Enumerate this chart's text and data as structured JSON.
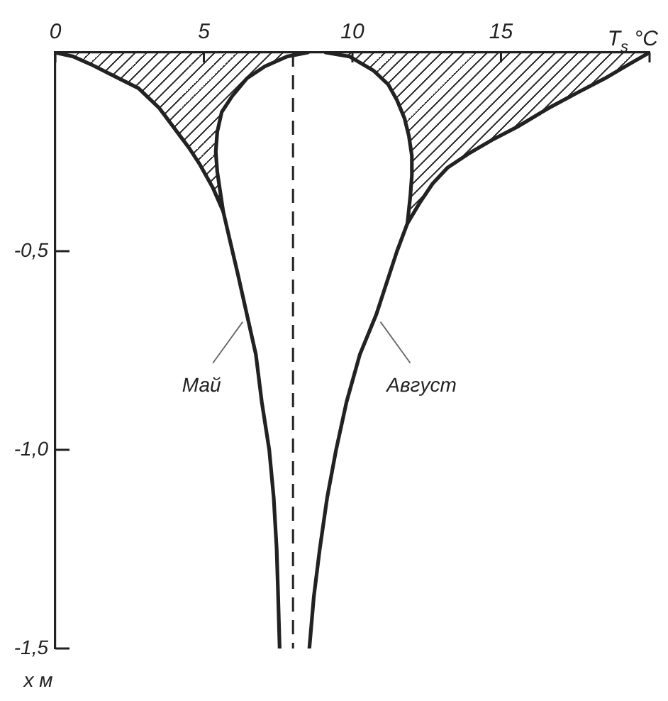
{
  "chart_data": {
    "type": "line",
    "xlabel": "T$_{s}$ °C",
    "ylabel": "x м",
    "xlim": [
      0,
      20
    ],
    "xticks": [
      0,
      5,
      10,
      15,
      {
        "value": 20,
        "label": null
      }
    ],
    "ylim": [
      -1.5,
      0
    ],
    "yticks": [
      {
        "value": -1.5,
        "label": "-1,5"
      },
      {
        "value": -1,
        "label": "-1,0"
      },
      {
        "value": -0.5,
        "label": "-0,5"
      }
    ],
    "series": [
      {
        "type": "area",
        "color": "#222222",
        "x": [
          8.5,
          7.8,
          7.05,
          6.45,
          5.95,
          5.6,
          5.45,
          5.4,
          5.45,
          5.55,
          5.65,
          5.3,
          4.85,
          4.5,
          4.0,
          3.5,
          2.8,
          2.0,
          1.2,
          0.6,
          0
        ],
        "values": [
          0,
          -0.01,
          -0.035,
          -0.065,
          -0.11,
          -0.15,
          -0.2,
          -0.25,
          -0.3,
          -0.35,
          -0.4,
          -0.34,
          -0.28,
          -0.24,
          -0.19,
          -0.14,
          -0.09,
          -0.06,
          -0.03,
          -0.01,
          0
        ]
      },
      {
        "name": "Май",
        "color": "#222222",
        "x": [
          5.65,
          5.9,
          6.15,
          6.45,
          6.75,
          6.95,
          7.2,
          7.35,
          7.45,
          7.5,
          7.55
        ],
        "values": [
          -0.4,
          -0.48,
          -0.56,
          -0.66,
          -0.76,
          -0.88,
          -1,
          -1.12,
          -1.25,
          -1.37,
          -1.5
        ]
      },
      {
        "type": "area",
        "color": "#222222",
        "x": [
          9.1,
          9.9,
          10.7,
          11.2,
          11.5,
          11.75,
          11.9,
          12.0,
          12.0,
          11.95,
          11.85,
          12.25,
          12.7,
          13.2,
          13.9,
          14.7,
          15.6,
          16.6,
          17.6,
          18.5,
          19.3,
          20
        ],
        "values": [
          0,
          -0.01,
          -0.045,
          -0.08,
          -0.12,
          -0.165,
          -0.21,
          -0.26,
          -0.31,
          -0.36,
          -0.43,
          -0.38,
          -0.33,
          -0.29,
          -0.255,
          -0.22,
          -0.185,
          -0.14,
          -0.1,
          -0.065,
          -0.03,
          0
        ]
      },
      {
        "name": "Август",
        "color": "#222222",
        "x": [
          11.85,
          11.5,
          11.15,
          10.8,
          10.25,
          9.8,
          9.45,
          9.15,
          8.9,
          8.7,
          8.55
        ],
        "values": [
          -0.43,
          -0.5,
          -0.58,
          -0.66,
          -0.76,
          -0.88,
          -1,
          -1.12,
          -1.25,
          -1.37,
          -1.5
        ]
      }
    ],
    "ref_lines": [
      {
        "axis": "x",
        "value": 8,
        "line_style": "dashed",
        "color": "#222222"
      }
    ],
    "marker": "none",
    "line_style": "solid"
  }
}
